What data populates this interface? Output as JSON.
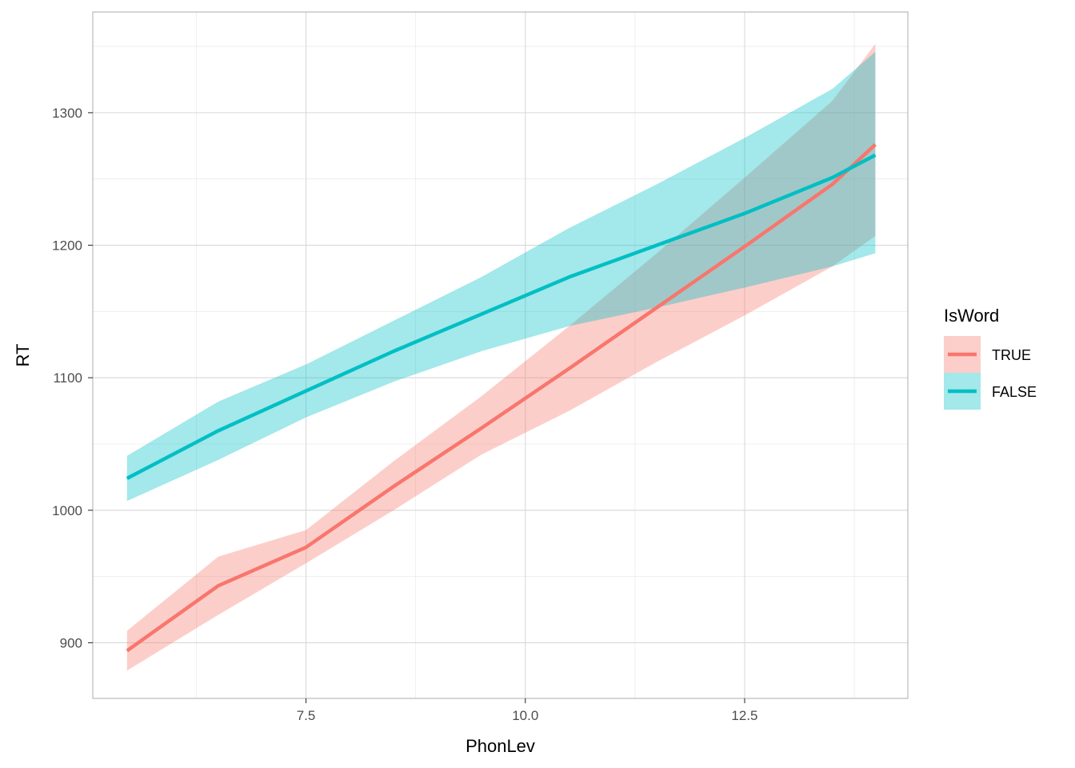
{
  "chart_data": {
    "type": "line",
    "title": "",
    "xlabel": "PhonLev",
    "ylabel": "RT",
    "xlim": [
      5.07,
      14.36
    ],
    "ylim": [
      858,
      1376
    ],
    "x_ticks": [
      7.5,
      10.0,
      12.5
    ],
    "x_tick_labels": [
      "7.5",
      "10.0",
      "12.5"
    ],
    "y_ticks": [
      900,
      1000,
      1100,
      1200,
      1300
    ],
    "y_tick_labels": [
      "900",
      "1000",
      "1100",
      "1200",
      "1300"
    ],
    "grid": true,
    "legend": {
      "title": "IsWord",
      "placement": "right"
    },
    "series": [
      {
        "name": "TRUE",
        "color": "#F8766D",
        "x": [
          5.46,
          6.5,
          7.5,
          8.5,
          9.5,
          10.5,
          11.5,
          12.5,
          13.5,
          13.99
        ],
        "y": [
          894,
          943,
          972,
          1018,
          1062,
          1107,
          1153,
          1199,
          1246,
          1276
        ],
        "lower": [
          879,
          921,
          960,
          1000,
          1042,
          1075,
          1112,
          1147,
          1184,
          1207
        ],
        "upper": [
          909,
          965,
          985,
          1037,
          1086,
          1139,
          1194,
          1251,
          1309,
          1352
        ]
      },
      {
        "name": "FALSE",
        "color": "#00BFC4",
        "x": [
          5.46,
          6.5,
          7.5,
          8.5,
          9.5,
          10.5,
          11.5,
          12.5,
          13.5,
          13.99
        ],
        "y": [
          1024,
          1060,
          1090,
          1120,
          1148,
          1176,
          1200,
          1224,
          1251,
          1268
        ],
        "lower": [
          1007,
          1038,
          1070,
          1097,
          1120,
          1139,
          1153,
          1168,
          1184,
          1194
        ],
        "upper": [
          1041,
          1082,
          1110,
          1143,
          1176,
          1213,
          1246,
          1281,
          1318,
          1346
        ]
      }
    ]
  }
}
